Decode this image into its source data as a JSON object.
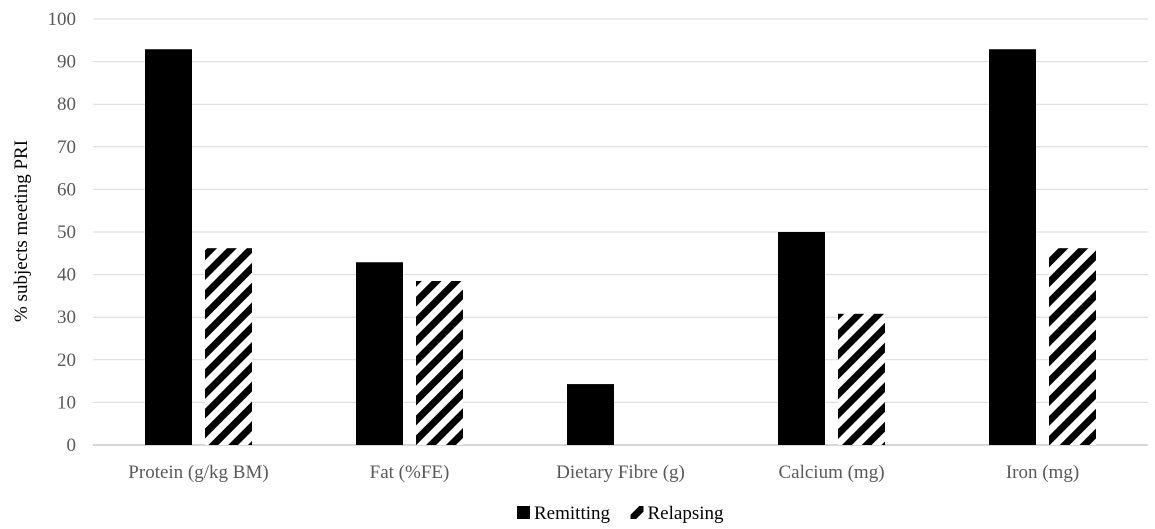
{
  "chart_data": {
    "type": "bar",
    "title": "",
    "xlabel": "",
    "ylabel": "% subjects meeting PRI",
    "ylim": [
      0,
      100
    ],
    "yticks": [
      0,
      10,
      20,
      30,
      40,
      50,
      60,
      70,
      80,
      90,
      100
    ],
    "grid": true,
    "legend_position": "bottom",
    "categories": [
      "Protein (g/kg BM)",
      "Fat (%FE)",
      "Dietary Fibre (g)",
      "Calcium (mg)",
      "Iron (mg)"
    ],
    "series": [
      {
        "name": "Remitting",
        "values": [
          92.9,
          42.9,
          14.3,
          50,
          92.9
        ],
        "color": "#000000",
        "pattern": "solid"
      },
      {
        "name": "Relapsing",
        "values": [
          46.2,
          38.5,
          0,
          30.8,
          46.2
        ],
        "color": "#000000",
        "pattern": "diagonal-hatch"
      }
    ]
  }
}
